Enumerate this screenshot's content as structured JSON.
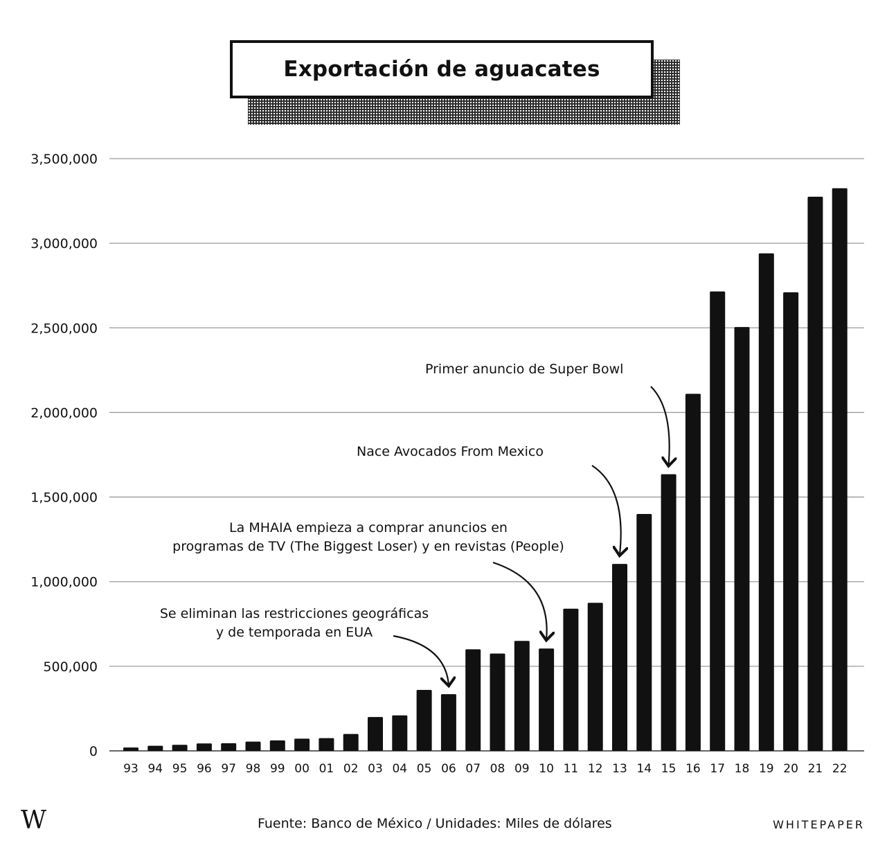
{
  "chart_data": {
    "type": "bar",
    "title": "Exportación de aguacates",
    "categories": [
      "93",
      "94",
      "95",
      "96",
      "97",
      "98",
      "99",
      "00",
      "01",
      "02",
      "03",
      "04",
      "05",
      "06",
      "07",
      "08",
      "09",
      "10",
      "11",
      "12",
      "13",
      "14",
      "15",
      "16",
      "17",
      "18",
      "19",
      "20",
      "21",
      "22"
    ],
    "values": [
      20000,
      30000,
      36000,
      44000,
      45000,
      55000,
      62000,
      72000,
      75000,
      100000,
      200000,
      210000,
      360000,
      335000,
      600000,
      575000,
      650000,
      605000,
      840000,
      875000,
      1105000,
      1400000,
      1635000,
      2110000,
      2715000,
      2505000,
      2940000,
      2710000,
      3275000,
      3325000
    ],
    "ylim": [
      0,
      3500000
    ],
    "yticks": [
      0,
      500000,
      1000000,
      1500000,
      2000000,
      2500000,
      3000000,
      3500000
    ],
    "ytick_labels": [
      "0",
      "500,000",
      "1,000,000",
      "1,500,000",
      "2,000,000",
      "2,500,000",
      "3,000,000",
      "3,500,000"
    ],
    "grid": true,
    "bar_color": "#111111",
    "annotations": [
      {
        "category": "15",
        "lines": [
          "Primer anuncio de Super Bowl"
        ]
      },
      {
        "category": "13",
        "lines": [
          "Nace Avocados From Mexico"
        ]
      },
      {
        "category": "10",
        "lines": [
          "La MHAIA empieza a comprar anuncios en",
          "programas de TV (The Biggest Loser) y en revistas (People)"
        ]
      },
      {
        "category": "06",
        "lines": [
          "Se eliminan las restricciones geográficas",
          "y de temporada en EUA"
        ]
      }
    ]
  },
  "footer": {
    "logo": "W",
    "source": "Fuente: Banco de México / Unidades: Miles de dólares",
    "brand": "WHITEPAPER"
  }
}
